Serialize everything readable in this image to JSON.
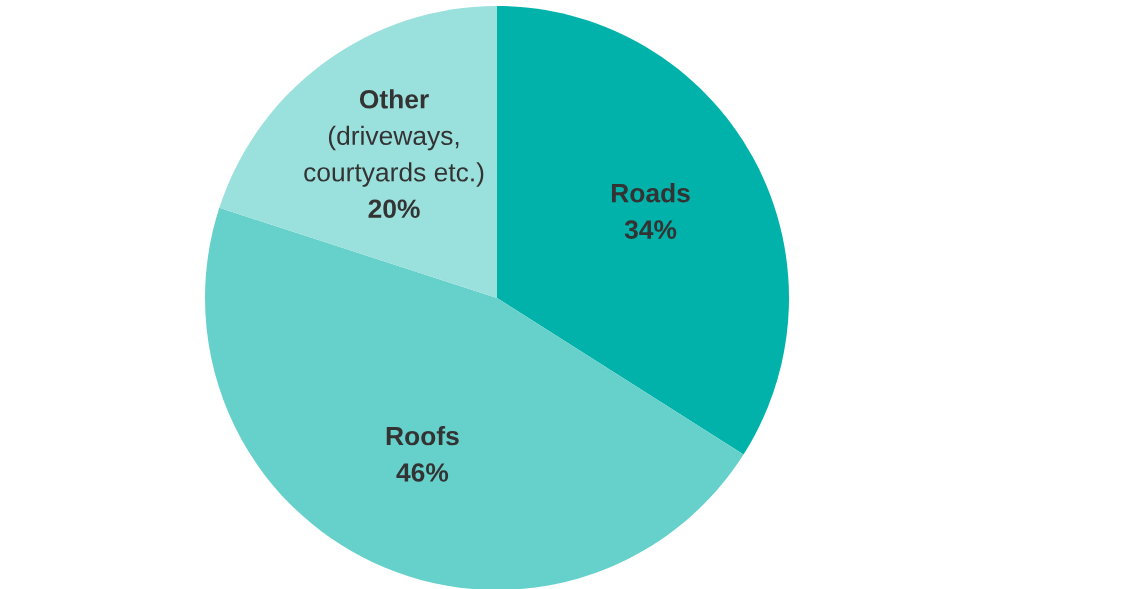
{
  "chart_data": {
    "type": "pie",
    "categories": [
      "Roads",
      "Roofs",
      "Other\n(driveways,\ncourtyards etc.)"
    ],
    "values": [
      34,
      46,
      20
    ],
    "colors": [
      "#00b2a9",
      "#66d1cb",
      "#9ae0dc"
    ],
    "value_labels": [
      "34%",
      "46%",
      "20%"
    ],
    "legend": false
  }
}
